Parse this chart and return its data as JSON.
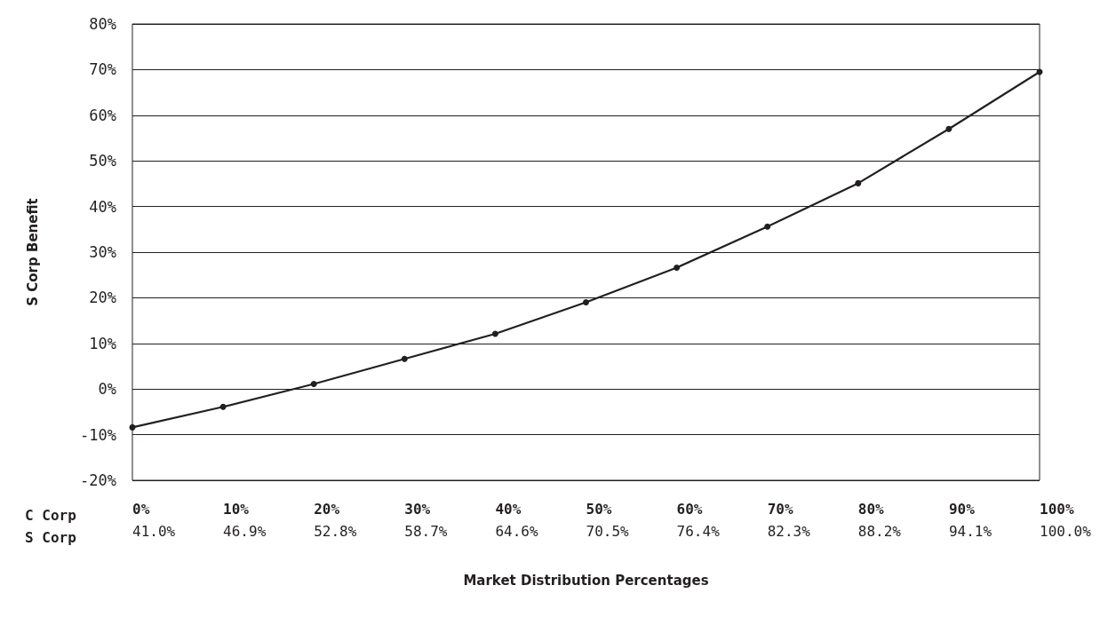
{
  "chart_data": {
    "type": "line",
    "categories": [
      "0%\n41.0%",
      "10%\n46.9%",
      "20%\n52.8%",
      "30%\n58.7%",
      "40%\n64.6%",
      "50%\n70.5%",
      "60%\n76.4%",
      "70%\n82.3%",
      "80%\n88.2%",
      "90%\n94.1%",
      "100%\n100.0%"
    ],
    "series": [
      {
        "color": "#231f20",
        "values": [
          -8.4,
          -3.9,
          1.1,
          6.6,
          12.1,
          19.0,
          26.6,
          35.6,
          45.1,
          57.0,
          69.5
        ]
      }
    ],
    "xlabel": "Market Distribution Percentages",
    "ylabel": "S Corp Benefit",
    "ylim": [
      -20,
      80
    ],
    "yticks": [
      {
        "value": -20,
        "label": "-20%"
      },
      {
        "value": -10,
        "label": "-10%"
      },
      {
        "value": 0,
        "label": "0%"
      },
      {
        "value": 10,
        "label": "10%"
      },
      {
        "value": 20,
        "label": "20%"
      },
      {
        "value": 30,
        "label": "30%"
      },
      {
        "value": 40,
        "label": "40%"
      },
      {
        "value": 50,
        "label": "50%"
      },
      {
        "value": 60,
        "label": "60%"
      },
      {
        "value": 70,
        "label": "70%"
      },
      {
        "value": 80,
        "label": "80%"
      }
    ],
    "annotations": [
      "C Corp\nS Corp"
    ],
    "grid": "y",
    "marker": "circle",
    "line_style": "solid"
  }
}
